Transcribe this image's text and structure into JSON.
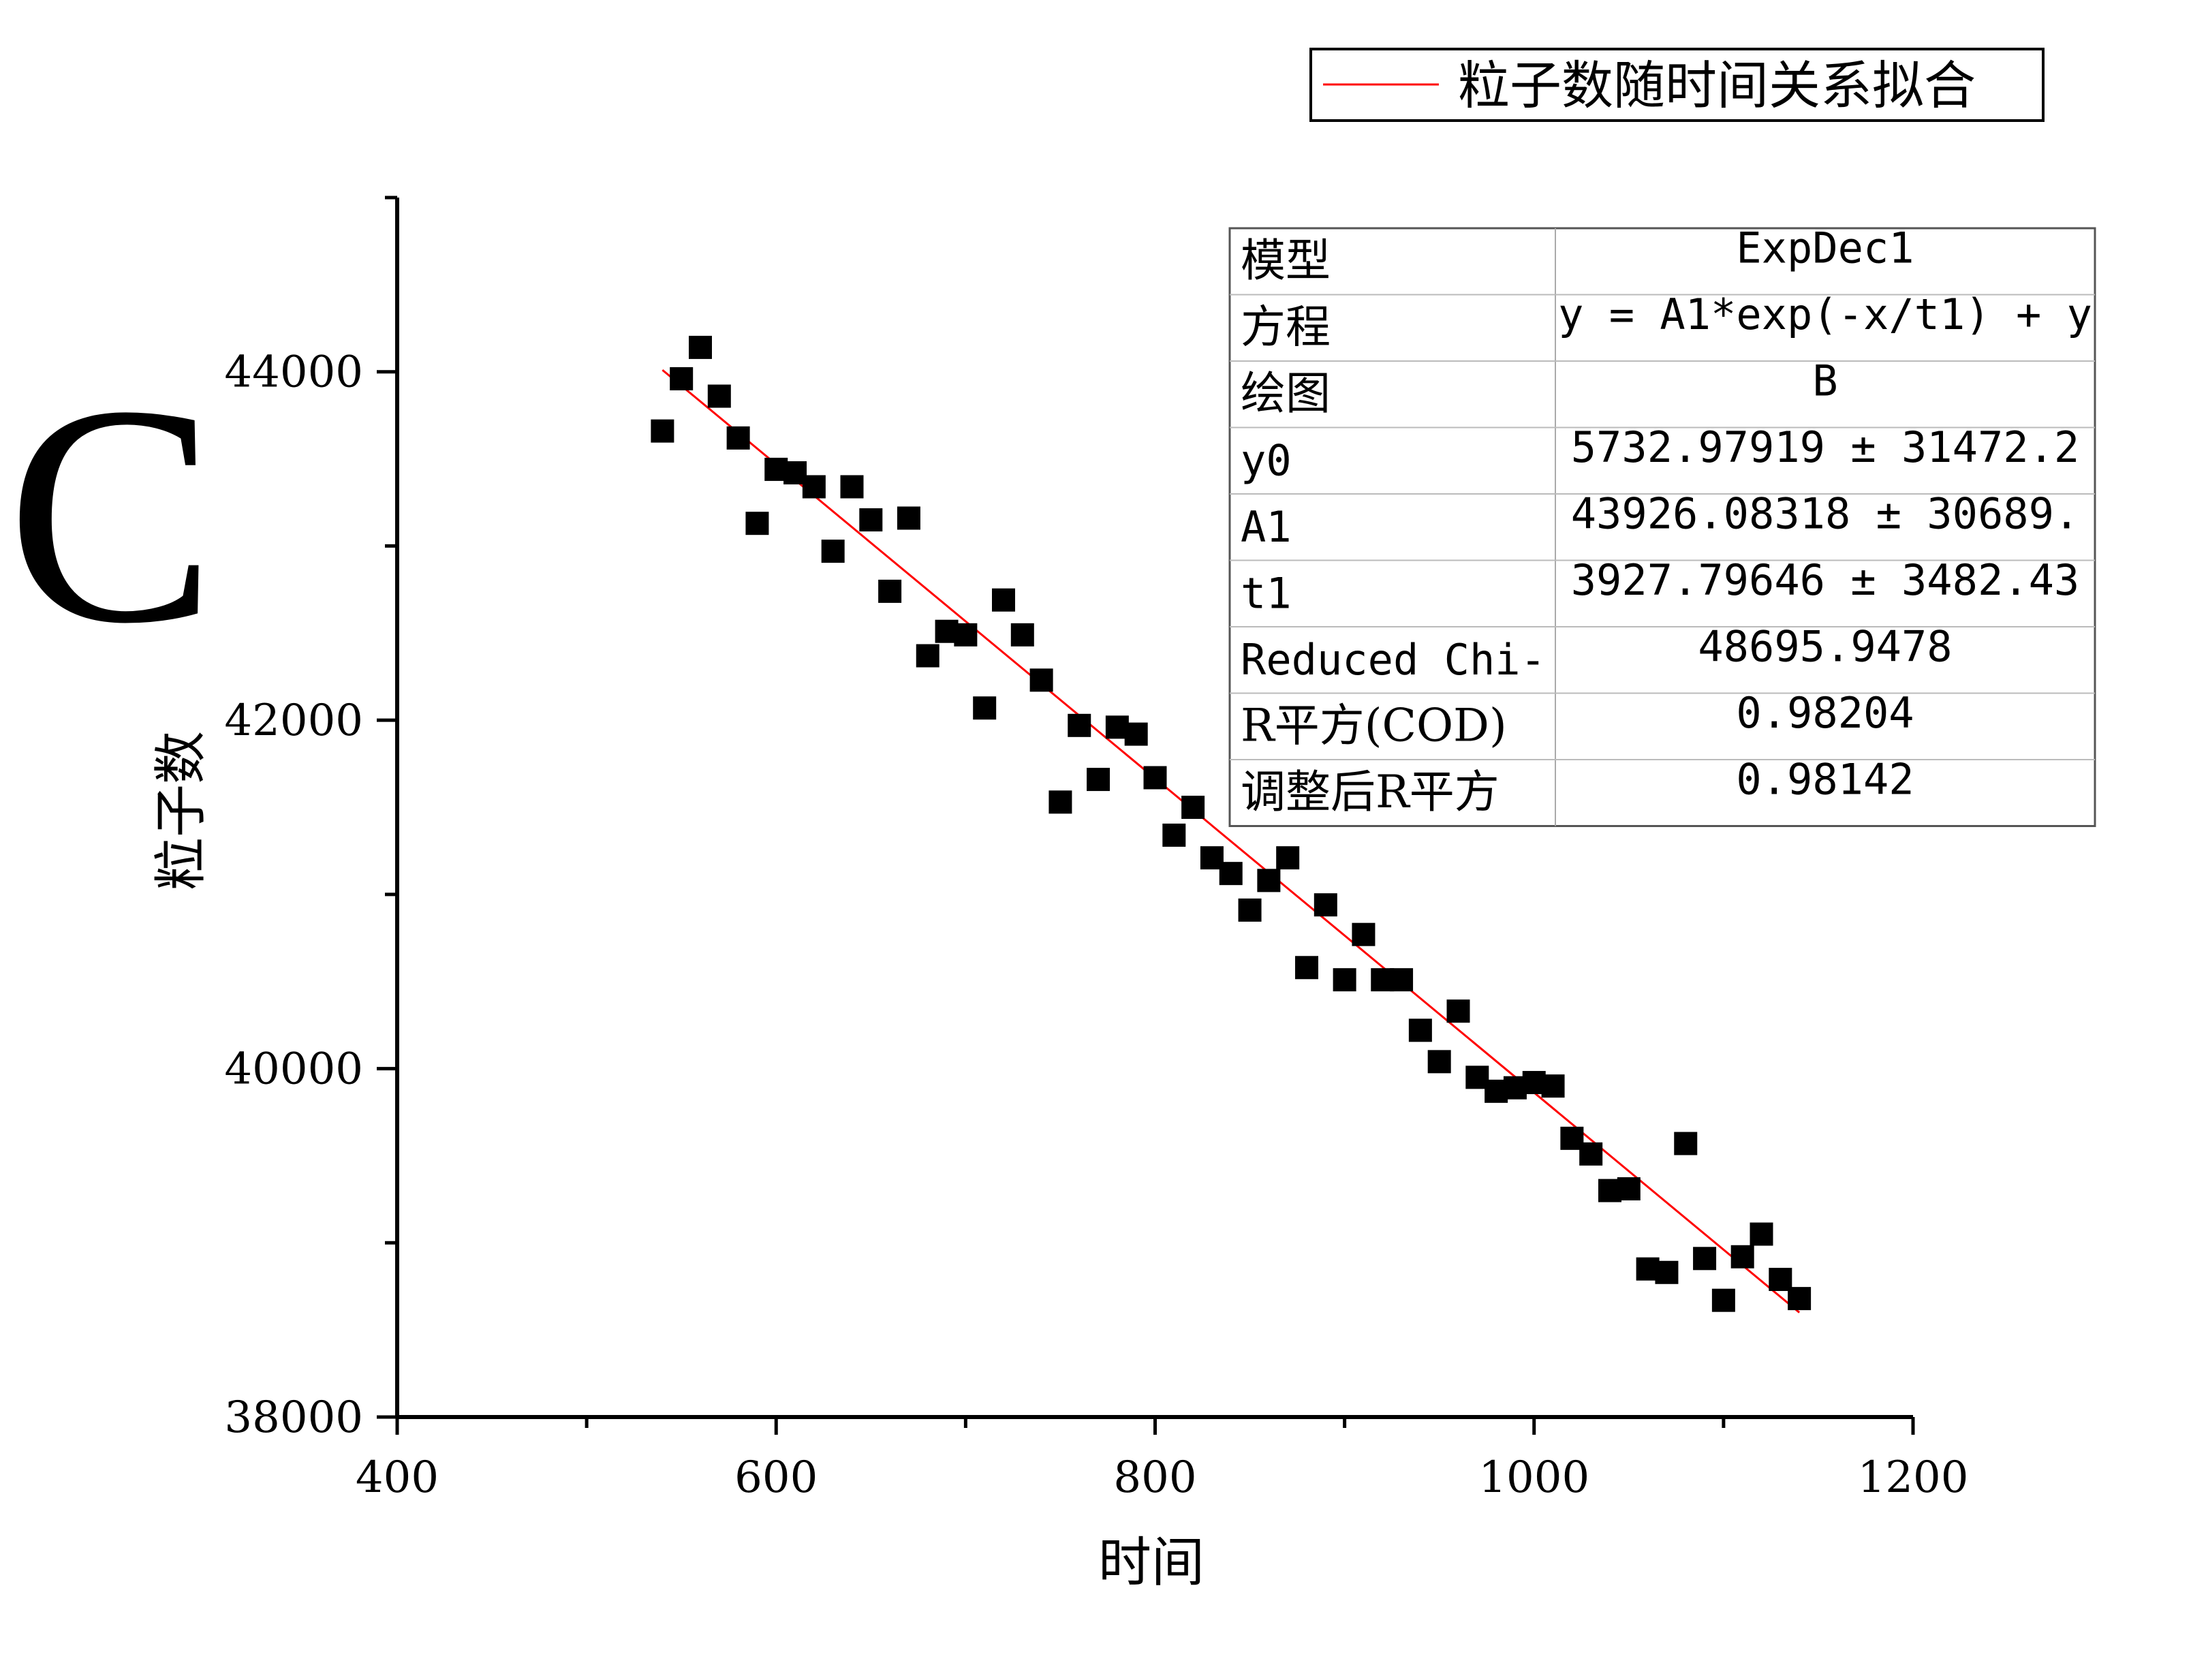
{
  "panel_label": "C",
  "legend": {
    "label": "粒子数随时间关系拟合",
    "line_color": "#ff0000"
  },
  "fit_table": {
    "rows": [
      {
        "name": "模型",
        "value": "ExpDec1"
      },
      {
        "name": "方程",
        "value": "y = A1*exp(-x/t1) + y"
      },
      {
        "name": "绘图",
        "value": "B"
      },
      {
        "name": "y0",
        "value": "5732.97919 ± 31472.2"
      },
      {
        "name": "A1",
        "value": "43926.08318 ± 30689."
      },
      {
        "name": "t1",
        "value": "3927.79646 ± 3482.43"
      },
      {
        "name": "Reduced Chi-",
        "value": "48695.9478"
      },
      {
        "name": "R平方(COD)",
        "value": "0.98204"
      },
      {
        "name": "调整后R平方",
        "value": "0.98142"
      }
    ]
  },
  "chart_data": {
    "type": "scatter",
    "title": "",
    "xlabel": "时间",
    "ylabel": "粒子数",
    "xlim": [
      400,
      1200
    ],
    "ylim": [
      38000,
      45000
    ],
    "xticks": [
      400,
      600,
      800,
      1000,
      1200
    ],
    "yticks": [
      38000,
      40000,
      42000,
      44000
    ],
    "grid": false,
    "legend_position": "top-right",
    "colors": {
      "points": "#000000",
      "fit": "#ff0000"
    },
    "series": [
      {
        "kind": "points",
        "marker": "square",
        "x": [
          540,
          550,
          560,
          570,
          580,
          590,
          600,
          610,
          620,
          630,
          640,
          650,
          660,
          670,
          680,
          690,
          700,
          710,
          720,
          730,
          740,
          750,
          760,
          770,
          780,
          790,
          800,
          810,
          820,
          830,
          840,
          850,
          860,
          870,
          880,
          890,
          900,
          910,
          920,
          930,
          940,
          950,
          960,
          970,
          980,
          990,
          1000,
          1010,
          1020,
          1030,
          1040,
          1050,
          1060,
          1070,
          1080,
          1090,
          1100,
          1110,
          1120,
          1130,
          1140
        ],
        "y": [
          43660,
          43960,
          44140,
          43860,
          43620,
          43130,
          43440,
          43420,
          43340,
          42970,
          43340,
          43150,
          42740,
          43160,
          42370,
          42510,
          42490,
          42070,
          42690,
          42490,
          42230,
          41530,
          41970,
          41660,
          41960,
          41920,
          41670,
          41340,
          41500,
          41210,
          41120,
          40910,
          41080,
          41210,
          40580,
          40940,
          40510,
          40770,
          40510,
          40510,
          40220,
          40040,
          40330,
          39950,
          39870,
          39890,
          39920,
          39900,
          39600,
          39510,
          39300,
          39310,
          38850,
          38830,
          39570,
          38910,
          38670,
          38920,
          39050,
          38790,
          38680
        ]
      },
      {
        "name": "粒子数随时间关系拟合",
        "kind": "fit",
        "x": [
          540,
          1140
        ],
        "y": [
          44010,
          38600
        ]
      }
    ]
  }
}
